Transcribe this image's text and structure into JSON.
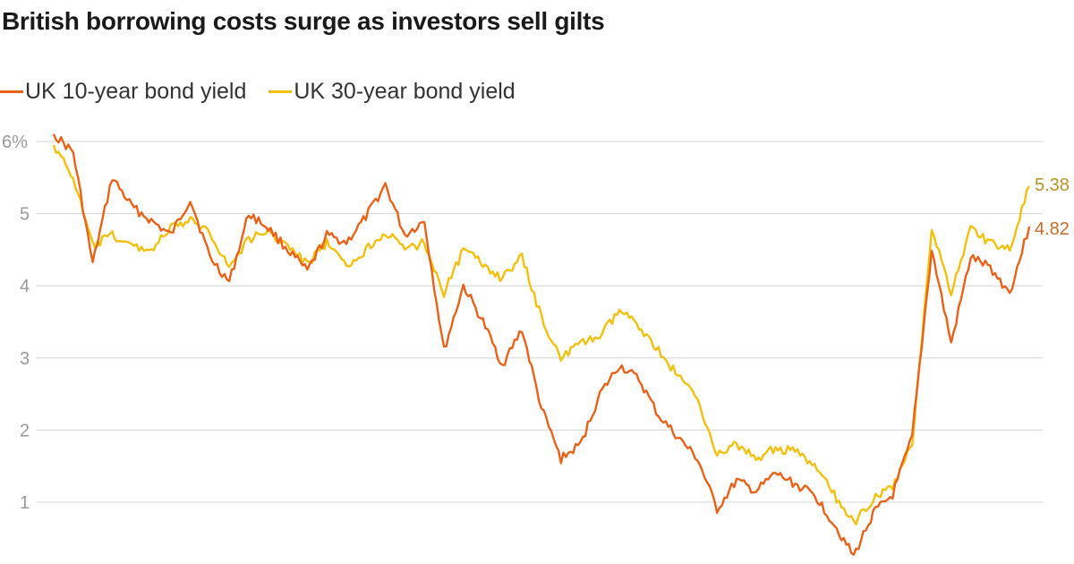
{
  "colors": {
    "uk10": "#e8621a",
    "uk30": "#f2c00f",
    "uk10_label": "#c86a2a",
    "uk30_label": "#b8922a",
    "grid": "#d4d4d4",
    "tick": "#9a9a9a"
  },
  "chart_data": {
    "type": "line",
    "title": "British borrowing costs surge as investors sell gilts",
    "xlabel": "",
    "ylabel": "",
    "ylim": [
      0.8,
      6.3
    ],
    "yticks": [
      {
        "value": 6,
        "label": "6%"
      },
      {
        "value": 5,
        "label": "5"
      },
      {
        "value": 4,
        "label": "4"
      },
      {
        "value": 3,
        "label": "3"
      },
      {
        "value": 2,
        "label": "2"
      },
      {
        "value": 1,
        "label": "1"
      }
    ],
    "grid": true,
    "legend_position": "top-left",
    "x": [
      0,
      2,
      4,
      6,
      8,
      10,
      12,
      14,
      16,
      18,
      20,
      22,
      24,
      26,
      28,
      30,
      32,
      34,
      36,
      38,
      40,
      42,
      44,
      46,
      48,
      50,
      52,
      54,
      56,
      58,
      60,
      62,
      64,
      66,
      68,
      70,
      72,
      74,
      76,
      78,
      80,
      82,
      84,
      86,
      88,
      90,
      92,
      94,
      96,
      98,
      100
    ],
    "series": [
      {
        "name": "UK 10-year bond yield",
        "end_label": "4.82",
        "values": [
          6.1,
          5.85,
          4.3,
          5.5,
          5.1,
          4.9,
          4.7,
          5.2,
          4.4,
          4.05,
          5.0,
          4.8,
          4.5,
          4.2,
          4.7,
          4.6,
          4.95,
          5.4,
          4.7,
          4.9,
          3.1,
          4.0,
          3.5,
          2.9,
          3.4,
          2.3,
          1.6,
          1.8,
          2.5,
          2.9,
          2.7,
          2.2,
          1.9,
          1.6,
          0.9,
          1.3,
          1.15,
          1.4,
          1.25,
          1.1,
          0.7,
          0.25,
          0.85,
          1.1,
          1.9,
          4.5,
          3.2,
          4.4,
          4.25,
          3.9,
          4.82
        ]
      },
      {
        "name": "UK 30-year bond yield",
        "end_label": "5.38",
        "values": [
          5.95,
          5.5,
          4.55,
          4.7,
          4.55,
          4.5,
          4.8,
          4.9,
          4.75,
          4.25,
          4.65,
          4.75,
          4.55,
          4.3,
          4.6,
          4.25,
          4.5,
          4.75,
          4.5,
          4.6,
          3.9,
          4.5,
          4.3,
          4.1,
          4.4,
          3.55,
          3.0,
          3.2,
          3.3,
          3.65,
          3.45,
          3.1,
          2.75,
          2.45,
          1.65,
          1.8,
          1.6,
          1.75,
          1.7,
          1.5,
          1.1,
          0.7,
          1.05,
          1.2,
          1.8,
          4.8,
          3.9,
          4.8,
          4.6,
          4.5,
          5.38
        ]
      }
    ]
  }
}
